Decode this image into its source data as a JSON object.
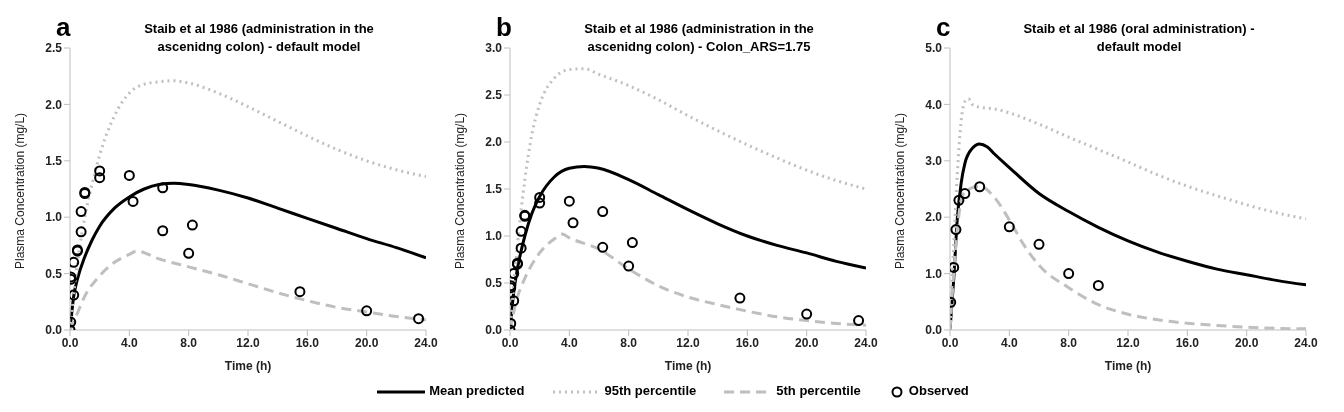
{
  "chart_data": [
    {
      "type": "line",
      "title": "Staib et al 1986 (administration in the ascenidng colon) - default model",
      "annotations": [
        "a"
      ],
      "xlabel": "Time (h)",
      "ylabel": "Plasma Concentration (mg/L)",
      "xlim": [
        0,
        24
      ],
      "xticks": [
        {
          "value": 0,
          "label": "0.0"
        },
        {
          "value": 4,
          "label": "4.0"
        },
        {
          "value": 8,
          "label": "8.0"
        },
        {
          "value": 12,
          "label": "12.0"
        },
        {
          "value": 16,
          "label": "16.0"
        },
        {
          "value": 20,
          "label": "20.0"
        },
        {
          "value": 24,
          "label": "24.0"
        }
      ],
      "ylim": [
        0,
        2.5
      ],
      "yticks": [
        {
          "value": 0,
          "label": "0.0"
        },
        0.5,
        {
          "value": 1,
          "label": "1.0"
        },
        1.5,
        {
          "value": 2,
          "label": "2.0"
        },
        2.5
      ],
      "grid": false,
      "legend": "bottom",
      "series": [
        {
          "name": "Mean predicted",
          "line_style": "solid",
          "color": "#000000",
          "x": [
            0,
            0.25,
            0.5,
            1,
            1.5,
            2,
            3,
            4,
            5,
            6,
            7,
            8,
            10,
            12,
            14,
            16,
            18,
            20,
            22,
            24
          ],
          "values": [
            0,
            0.3,
            0.45,
            0.65,
            0.8,
            0.92,
            1.08,
            1.18,
            1.25,
            1.29,
            1.3,
            1.29,
            1.24,
            1.17,
            1.08,
            0.99,
            0.9,
            0.81,
            0.73,
            0.64
          ]
        },
        {
          "name": "95th percentile",
          "line_style": "dotted",
          "color": "#bfbfbf",
          "x": [
            0,
            0.5,
            1,
            1.5,
            2,
            3,
            4,
            5,
            6,
            7,
            8,
            10,
            12,
            14,
            16,
            18,
            20,
            22,
            24
          ],
          "values": [
            0,
            0.6,
            1.0,
            1.3,
            1.55,
            1.9,
            2.1,
            2.18,
            2.2,
            2.21,
            2.19,
            2.1,
            1.98,
            1.85,
            1.72,
            1.6,
            1.5,
            1.42,
            1.36
          ]
        },
        {
          "name": "5th percentile",
          "line_style": "dashed",
          "color": "#bfbfbf",
          "x": [
            0,
            0.5,
            1,
            2,
            3,
            4,
            4.5,
            6,
            8,
            10,
            12,
            14,
            16,
            18,
            20,
            22,
            24
          ],
          "values": [
            0,
            0.15,
            0.3,
            0.48,
            0.6,
            0.67,
            0.7,
            0.63,
            0.56,
            0.49,
            0.41,
            0.33,
            0.26,
            0.2,
            0.16,
            0.12,
            0.09
          ]
        },
        {
          "name": "Observed",
          "type": "scatter",
          "marker": "circle",
          "color": "#000000",
          "x": [
            0,
            0.05,
            0.05,
            0.05,
            0.25,
            0.25,
            0.5,
            0.5,
            0.75,
            0.75,
            1,
            1,
            2,
            2,
            4,
            4.25,
            6.25,
            6.25,
            8,
            8.25,
            15.5,
            20,
            23.5
          ],
          "values": [
            0,
            0.07,
            0.47,
            0.45,
            0.31,
            0.6,
            0.7,
            0.71,
            0.87,
            1.05,
            1.21,
            1.22,
            1.35,
            1.41,
            1.37,
            1.14,
            1.26,
            0.88,
            0.68,
            0.93,
            0.34,
            0.17,
            0.1
          ]
        }
      ]
    },
    {
      "type": "line",
      "title": "Staib et al 1986 (administration in the ascenidng colon) - Colon_ARS=1.75",
      "annotations": [
        "b"
      ],
      "xlabel": "Time (h)",
      "ylabel": "Plasma Concentration (mg/L)",
      "xlim": [
        0,
        24
      ],
      "xticks": [
        {
          "value": 0,
          "label": "0.0"
        },
        {
          "value": 4,
          "label": "4.0"
        },
        {
          "value": 8,
          "label": "8.0"
        },
        {
          "value": 12,
          "label": "12.0"
        },
        {
          "value": 16,
          "label": "16.0"
        },
        {
          "value": 20,
          "label": "20.0"
        },
        {
          "value": 24,
          "label": "24.0"
        }
      ],
      "ylim": [
        0,
        3
      ],
      "yticks": [
        {
          "value": 0,
          "label": "0.0"
        },
        0.5,
        {
          "value": 1,
          "label": "1.0"
        },
        1.5,
        {
          "value": 2,
          "label": "2.0"
        },
        2.5,
        {
          "value": 3,
          "label": "3.0"
        }
      ],
      "grid": false,
      "series": [
        {
          "line_style": "solid",
          "color": "#000000",
          "x": [
            0,
            0.25,
            0.5,
            1,
            1.5,
            2,
            3,
            4,
            5,
            6,
            8,
            10,
            12,
            14,
            16,
            18,
            20,
            22,
            24
          ],
          "values": [
            0,
            0.4,
            0.65,
            1.0,
            1.25,
            1.42,
            1.63,
            1.72,
            1.74,
            1.72,
            1.6,
            1.44,
            1.28,
            1.13,
            1.0,
            0.9,
            0.82,
            0.73,
            0.66
          ]
        },
        {
          "line_style": "dotted",
          "color": "#bfbfbf",
          "x": [
            0,
            0.5,
            1,
            1.5,
            2,
            3,
            4,
            5,
            6,
            8,
            10,
            12,
            14,
            16,
            18,
            20,
            22,
            24
          ],
          "values": [
            0,
            0.9,
            1.6,
            2.1,
            2.4,
            2.68,
            2.77,
            2.78,
            2.72,
            2.6,
            2.45,
            2.28,
            2.12,
            1.97,
            1.83,
            1.7,
            1.59,
            1.5
          ]
        },
        {
          "line_style": "dashed",
          "color": "#bfbfbf",
          "x": [
            0,
            0.5,
            1,
            2,
            3,
            3.5,
            4,
            6,
            8,
            10,
            12,
            14,
            16,
            18,
            20,
            22,
            24
          ],
          "values": [
            0,
            0.35,
            0.55,
            0.82,
            0.97,
            1.02,
            0.98,
            0.86,
            0.65,
            0.47,
            0.35,
            0.27,
            0.2,
            0.14,
            0.1,
            0.07,
            0.05
          ]
        },
        {
          "type": "scatter",
          "marker": "circle",
          "color": "#000000",
          "x": [
            0,
            0.05,
            0.05,
            0.05,
            0.25,
            0.25,
            0.5,
            0.5,
            0.75,
            0.75,
            1,
            1,
            2,
            2,
            4,
            4.25,
            6.25,
            6.25,
            8,
            8.25,
            15.5,
            20,
            23.5
          ],
          "values": [
            0,
            0.07,
            0.47,
            0.45,
            0.31,
            0.6,
            0.7,
            0.71,
            0.87,
            1.05,
            1.21,
            1.22,
            1.35,
            1.41,
            1.37,
            1.14,
            1.26,
            0.88,
            0.68,
            0.93,
            0.34,
            0.17,
            0.1
          ]
        }
      ]
    },
    {
      "type": "line",
      "title": "Staib et al 1986 (oral administration) - default model",
      "annotations": [
        "c"
      ],
      "xlabel": "Time (h)",
      "ylabel": "Plasma Concentration (mg/L)",
      "xlim": [
        0,
        24
      ],
      "xticks": [
        {
          "value": 0,
          "label": "0.0"
        },
        {
          "value": 4,
          "label": "4.0"
        },
        {
          "value": 8,
          "label": "8.0"
        },
        {
          "value": 12,
          "label": "12.0"
        },
        {
          "value": 16,
          "label": "16.0"
        },
        {
          "value": 20,
          "label": "20.0"
        },
        {
          "value": 24,
          "label": "24.0"
        }
      ],
      "ylim": [
        0,
        5
      ],
      "yticks": [
        {
          "value": 0,
          "label": "0.0"
        },
        {
          "value": 1,
          "label": "1.0"
        },
        {
          "value": 2,
          "label": "2.0"
        },
        {
          "value": 3,
          "label": "3.0"
        },
        {
          "value": 4,
          "label": "4.0"
        },
        {
          "value": 5,
          "label": "5.0"
        }
      ],
      "grid": false,
      "series": [
        {
          "line_style": "solid",
          "color": "#000000",
          "x": [
            0,
            0.25,
            0.5,
            0.75,
            1,
            1.5,
            2,
            2.5,
            3,
            4,
            6,
            8,
            10,
            12,
            14,
            16,
            18,
            20,
            22,
            24
          ],
          "values": [
            0,
            0.9,
            2.0,
            2.6,
            2.95,
            3.22,
            3.3,
            3.25,
            3.12,
            2.88,
            2.42,
            2.1,
            1.82,
            1.58,
            1.38,
            1.22,
            1.08,
            0.98,
            0.88,
            0.8
          ]
        },
        {
          "line_style": "dotted",
          "color": "#bfbfbf",
          "x": [
            0,
            0.25,
            0.5,
            0.75,
            1,
            1.25,
            1.5,
            2,
            3,
            4,
            6,
            8,
            10,
            12,
            14,
            16,
            18,
            20,
            22,
            24
          ],
          "values": [
            0,
            1.5,
            2.8,
            3.7,
            4.05,
            4.1,
            4.0,
            3.95,
            3.92,
            3.85,
            3.65,
            3.42,
            3.2,
            2.98,
            2.75,
            2.55,
            2.38,
            2.22,
            2.08,
            1.97
          ]
        },
        {
          "line_style": "dashed",
          "color": "#bfbfbf",
          "x": [
            0,
            0.25,
            0.5,
            0.75,
            1,
            2,
            3,
            4,
            5,
            6,
            8,
            10,
            12,
            14,
            16,
            18,
            20,
            22,
            24
          ],
          "values": [
            0,
            1.0,
            1.8,
            2.3,
            2.45,
            2.55,
            2.35,
            1.95,
            1.5,
            1.15,
            0.75,
            0.45,
            0.28,
            0.18,
            0.12,
            0.08,
            0.05,
            0.03,
            0.02
          ]
        },
        {
          "type": "scatter",
          "marker": "circle",
          "color": "#000000",
          "x": [
            0.05,
            0.25,
            0.4,
            0.6,
            1,
            2,
            4,
            6,
            8,
            10
          ],
          "values": [
            0.49,
            1.11,
            1.78,
            2.3,
            2.42,
            2.54,
            1.83,
            1.52,
            1.0,
            0.79
          ]
        }
      ]
    }
  ]
}
